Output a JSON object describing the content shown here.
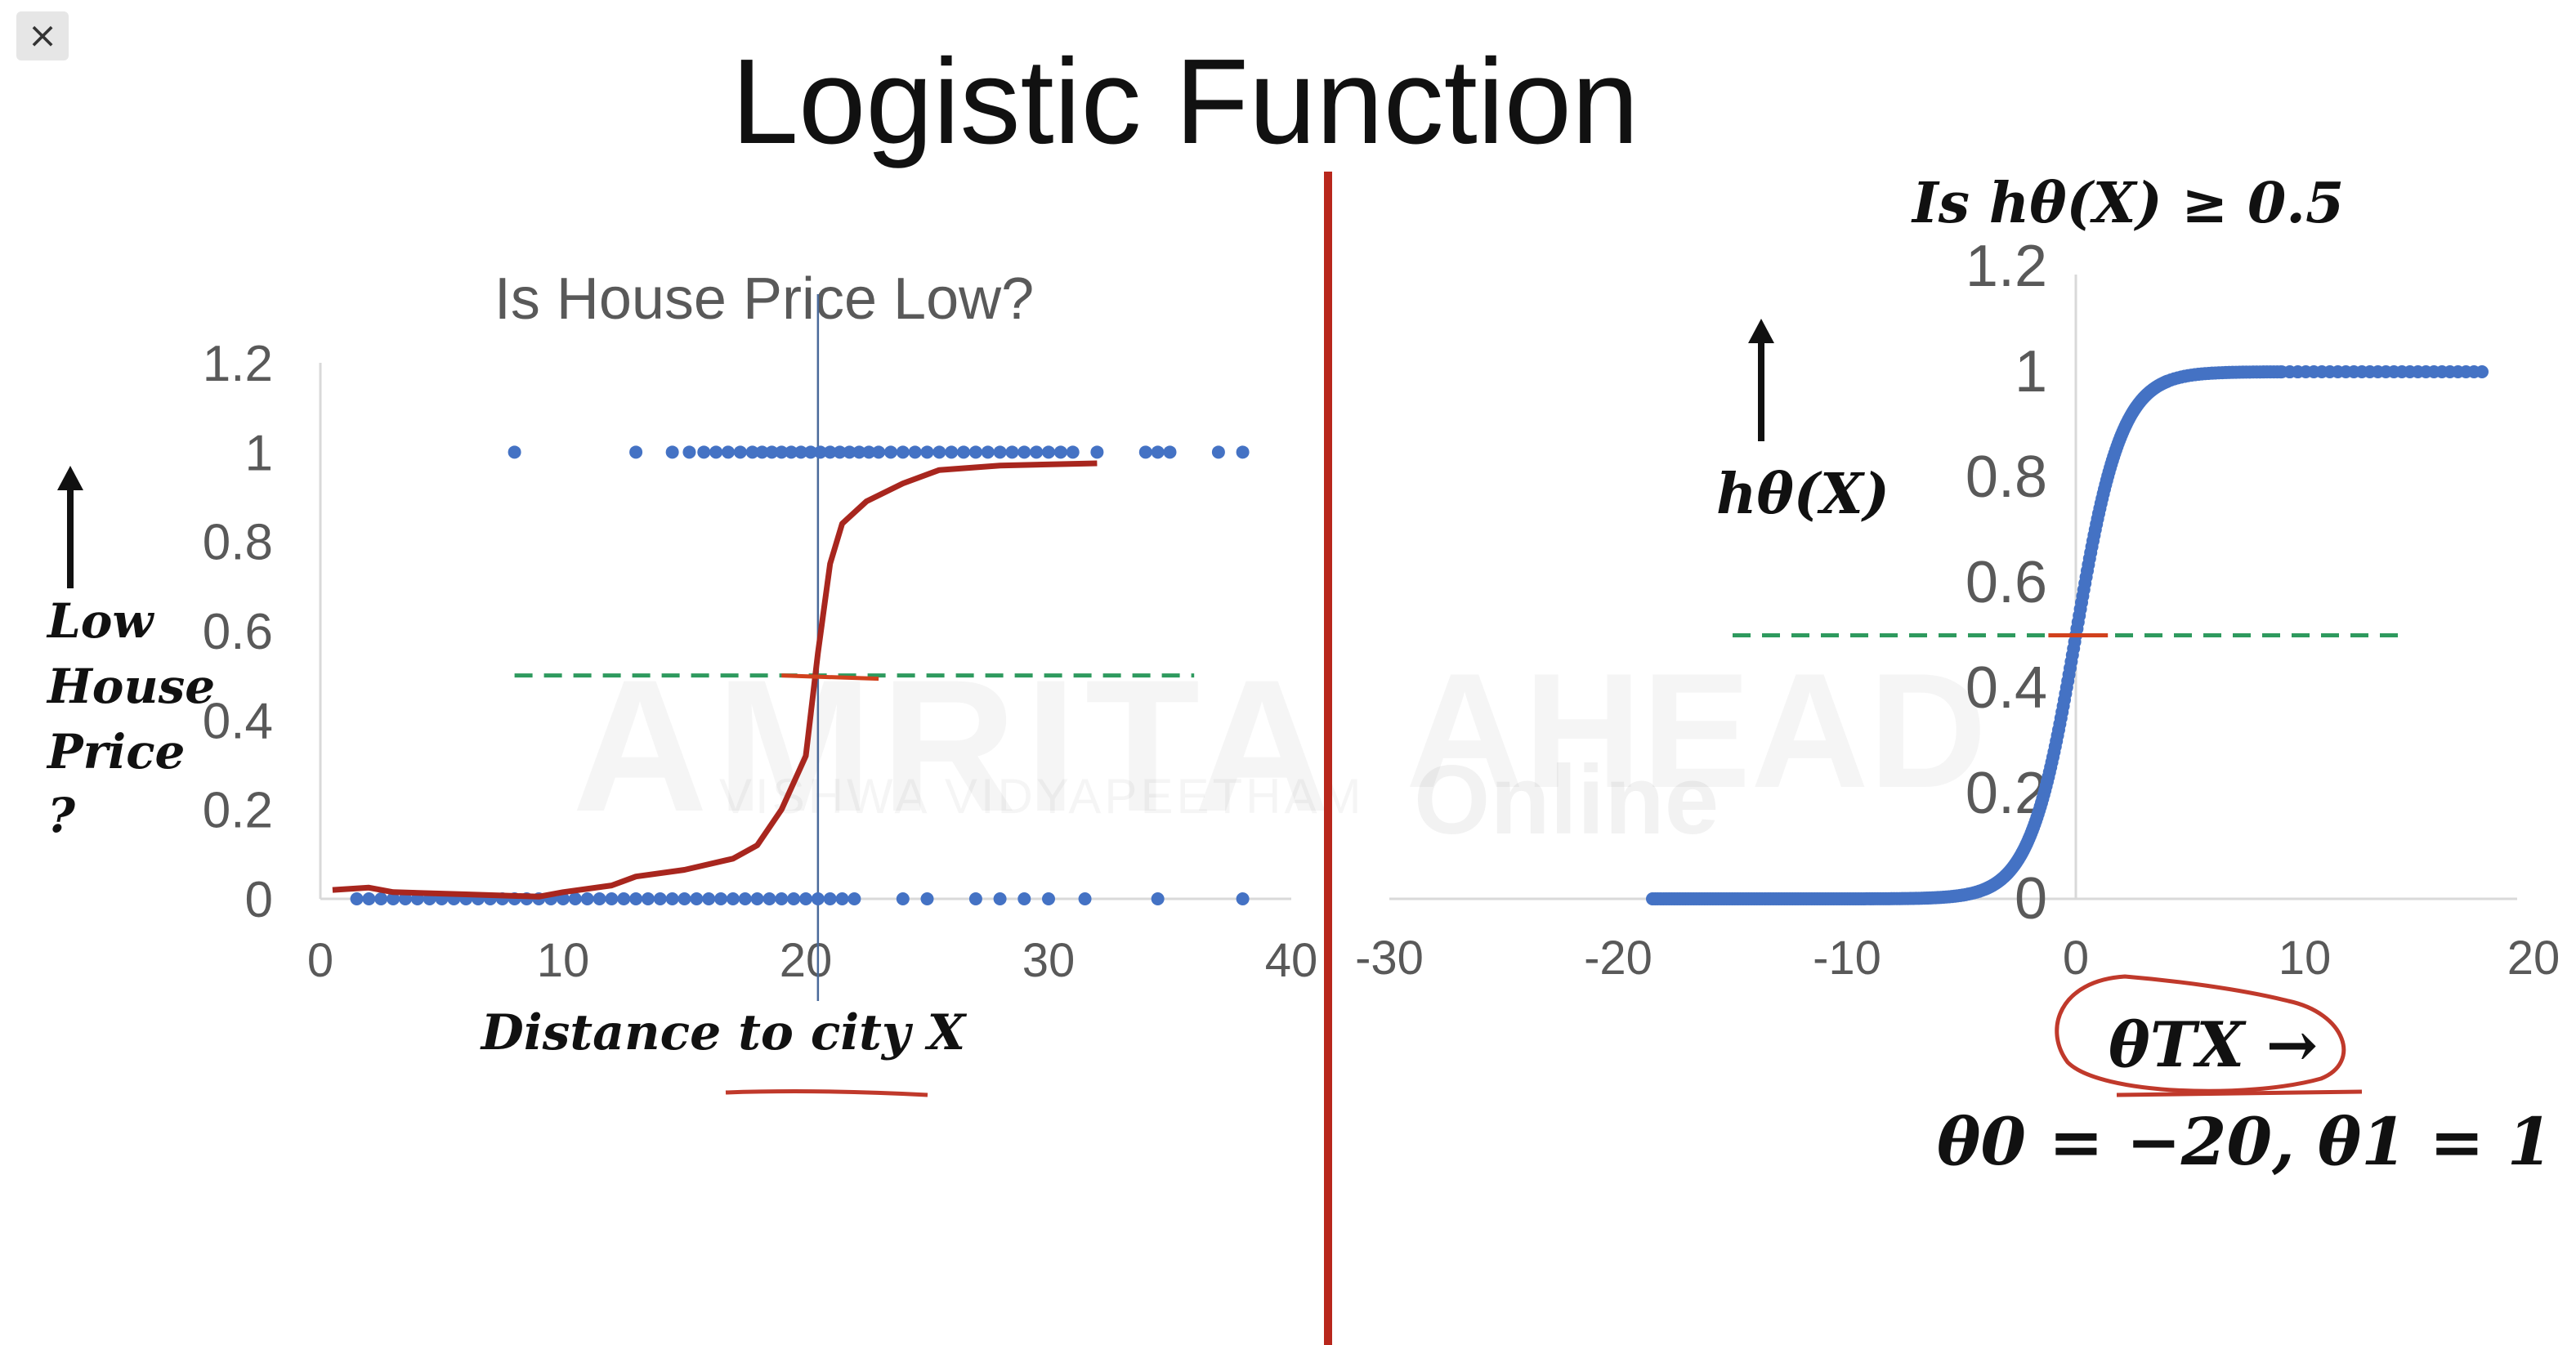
{
  "window": {
    "close_label": "×"
  },
  "slide": {
    "title": "Logistic Function"
  },
  "watermark": {
    "brand": "AMRITA",
    "sub": "VISHWA VIDYAPEETHAM",
    "right": "AHEAD",
    "right_sub": "Online"
  },
  "colors": {
    "points": "#4472c4",
    "fit_curve": "#a8261e",
    "threshold": "#2e9a5e",
    "divider": "#b8271c",
    "ink": "#c0392b"
  },
  "chart_data": [
    {
      "type": "scatter",
      "title": "Is House Price Low?",
      "xlabel": "Distance to city X",
      "ylabel_lines": [
        "Low",
        "House",
        "Price",
        "?"
      ],
      "xlim": [
        0,
        40
      ],
      "ylim": [
        0,
        1.2
      ],
      "xticks": [
        0,
        10,
        20,
        30,
        40
      ],
      "yticks": [
        0,
        0.2,
        0.4,
        0.6,
        0.8,
        1,
        1.2
      ],
      "series": [
        {
          "points_y0_x": [
            1.5,
            2,
            2.5,
            3,
            3.5,
            4,
            4.5,
            5,
            5.5,
            6,
            6.5,
            7,
            7.5,
            8,
            8.5,
            9,
            9.5,
            10,
            10.5,
            11,
            11.5,
            12,
            12.5,
            13,
            13.5,
            14,
            14.5,
            15,
            15.5,
            16,
            16.5,
            17,
            17.5,
            18,
            18.5,
            19,
            19.5,
            20,
            20.5,
            21,
            21.5,
            22,
            24,
            25,
            27,
            28,
            29,
            30,
            31.5,
            34.5,
            38
          ],
          "points_y1_x": [
            8,
            13,
            14.5,
            15.2,
            15.8,
            16.3,
            16.8,
            17.3,
            17.8,
            18.2,
            18.6,
            19,
            19.4,
            19.8,
            20.2,
            20.6,
            21,
            21.4,
            21.8,
            22.2,
            22.6,
            23,
            23.5,
            24,
            24.5,
            25,
            25.5,
            26,
            26.5,
            27,
            27.5,
            28,
            28.5,
            29,
            29.5,
            30,
            30.5,
            31,
            32,
            34,
            34.5,
            35,
            37,
            38
          ]
        }
      ],
      "fit_curve": [
        [
          0.5,
          0.02
        ],
        [
          2,
          0.025
        ],
        [
          3,
          0.015
        ],
        [
          6,
          0.01
        ],
        [
          9,
          0.005
        ],
        [
          10,
          0.015
        ],
        [
          12,
          0.03
        ],
        [
          13,
          0.05
        ],
        [
          15,
          0.065
        ],
        [
          17,
          0.09
        ],
        [
          18,
          0.12
        ],
        [
          19,
          0.2
        ],
        [
          20,
          0.32
        ],
        [
          20.5,
          0.55
        ],
        [
          21,
          0.75
        ],
        [
          21.5,
          0.84
        ],
        [
          22.5,
          0.89
        ],
        [
          24,
          0.93
        ],
        [
          25.5,
          0.96
        ],
        [
          28,
          0.97
        ],
        [
          32,
          0.975
        ]
      ],
      "threshold_y": 0.5,
      "threshold_x_range": [
        8,
        36
      ],
      "vline_x": 20.5
    },
    {
      "type": "scatter",
      "title": "Is hθ(X) ≥ 0.5",
      "xlabel": "θTX →",
      "ylabel": "hθ(X)",
      "xlim": [
        -30,
        20
      ],
      "ylim": [
        0,
        1.2
      ],
      "xticks": [
        -30,
        -20,
        -10,
        0,
        10,
        20
      ],
      "yticks": [
        0,
        0.2,
        0.4,
        0.6,
        0.8,
        1,
        1.2
      ],
      "sigmoid_x_range": [
        -18.5,
        18
      ],
      "threshold_y": 0.5,
      "threshold_x_range": [
        -15,
        14.3
      ],
      "params_text": "θ0 = −20, θ1 = 1"
    }
  ]
}
